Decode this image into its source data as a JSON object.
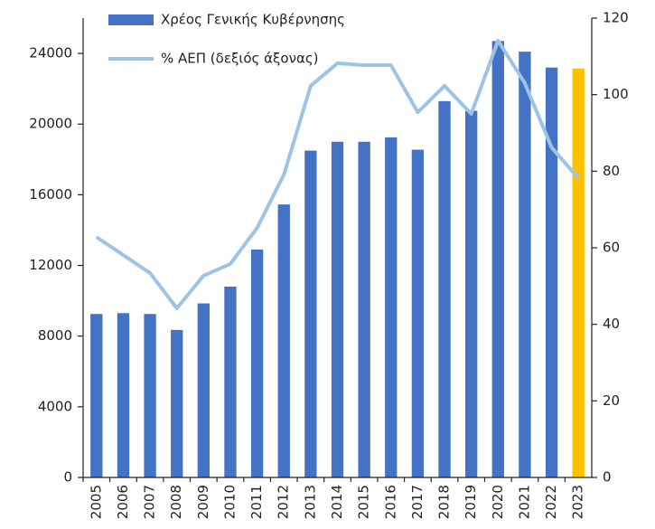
{
  "chart_data": {
    "type": "bar-line",
    "categories": [
      "2005",
      "2006",
      "2007",
      "2008",
      "2009",
      "2010",
      "2011",
      "2012",
      "2013",
      "2014",
      "2015",
      "2016",
      "2017",
      "2018",
      "2019",
      "2020",
      "2021",
      "2022",
      "2023"
    ],
    "series": [
      {
        "name": "Χρέος Γενικής Κυβέρνησης",
        "type": "bar",
        "color": "#4472c4",
        "colors": [
          "#4472c4",
          "#4472c4",
          "#4472c4",
          "#4472c4",
          "#4472c4",
          "#4472c4",
          "#4472c4",
          "#4472c4",
          "#4472c4",
          "#4472c4",
          "#4472c4",
          "#4472c4",
          "#4472c4",
          "#4472c4",
          "#4472c4",
          "#4472c4",
          "#4472c4",
          "#4472c4",
          "#ffc000"
        ],
        "values": [
          9250,
          9300,
          9250,
          8350,
          9850,
          10800,
          12900,
          15450,
          18500,
          19000,
          19000,
          19250,
          18550,
          21300,
          20750,
          24700,
          24100,
          23200,
          23150
        ]
      },
      {
        "name": "% ΑΕΠ (δεξιός άξονας)",
        "type": "line",
        "axis": "y2",
        "color": "#9dc3e6",
        "values": [
          62.8,
          58.1,
          53.4,
          44.2,
          52.7,
          55.8,
          65.2,
          79.1,
          102.3,
          108.2,
          107.7,
          107.7,
          95.4,
          102.3,
          95,
          114.1,
          103,
          86.2,
          78.2
        ]
      }
    ],
    "ylim": [
      0,
      26000
    ],
    "yticks": [
      0,
      4000,
      8000,
      12000,
      16000,
      20000,
      24000
    ],
    "y2lim": [
      0,
      120
    ],
    "y2ticks": [
      0,
      20,
      40,
      60,
      80,
      100,
      120
    ],
    "legend": "top-left"
  }
}
